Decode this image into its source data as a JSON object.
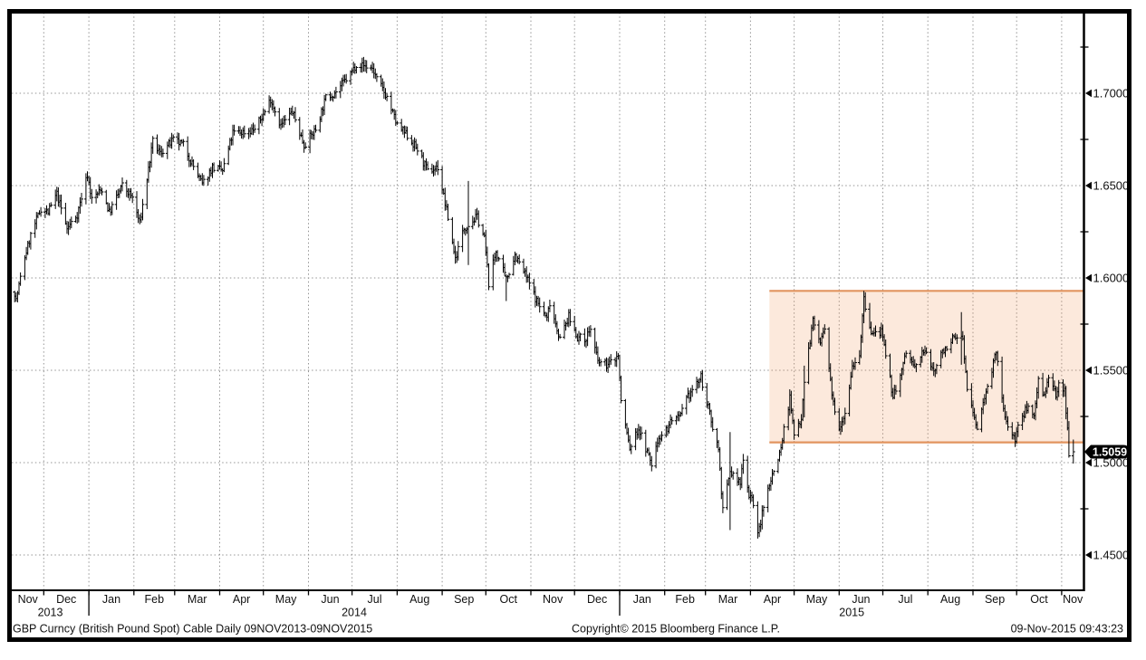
{
  "footer": {
    "left": "GBP Curncy (British Pound Spot) Cable  Daily 09NOV2013-09NOV2015",
    "center": "Copyright© 2015 Bloomberg Finance L.P.",
    "right": "09-Nov-2015 09:43:23"
  },
  "chart_data": {
    "type": "ohlc",
    "title": "GBP Curncy (British Pound Spot) Cable",
    "period": "Daily 09NOV2013-09NOV2015",
    "x_range": {
      "start": "2013-11-09",
      "end": "2015-11-09",
      "axis_end": "2015-11-16"
    },
    "y_axis": {
      "major_ticks": [
        1.45,
        1.5,
        1.55,
        1.6,
        1.65,
        1.7
      ],
      "minor_ticks": [
        1.475,
        1.525,
        1.575,
        1.625,
        1.675,
        1.725
      ],
      "decimals": 4
    },
    "x_axis": {
      "month_labels": [
        "Nov",
        "Dec",
        "Jan",
        "Feb",
        "Mar",
        "Apr",
        "May",
        "Jun",
        "Jul",
        "Aug",
        "Sep",
        "Oct",
        "Nov",
        "Dec",
        "Jan",
        "Feb",
        "Mar",
        "Apr",
        "May",
        "Jun",
        "Jul",
        "Aug",
        "Sep",
        "Oct",
        "Nov"
      ],
      "year_labels": [
        "2013",
        "2014",
        "2015"
      ]
    },
    "highlight_band": {
      "start": "2015-04-14",
      "end": "2015-11-16",
      "price_low": 1.511,
      "price_high": 1.593,
      "fill": "rgba(243,156,96,0.22)",
      "line_color": "#e2945f"
    },
    "last_price": 1.5059,
    "last_price_label": "1.5059",
    "bar_color": "#000000",
    "grid_color": "#949494",
    "noise": {
      "seed": 7,
      "close_jitter": 0.0045,
      "wick_min": 0.0006,
      "wick_rand": 0.0028
    },
    "anchors": [
      [
        "2013-11-09",
        1.601
      ],
      [
        "2013-11-12",
        1.588
      ],
      [
        "2013-11-18",
        1.6115
      ],
      [
        "2013-11-22",
        1.623
      ],
      [
        "2013-11-29",
        1.6375
      ],
      [
        "2013-12-04",
        1.6355
      ],
      [
        "2013-12-10",
        1.6455
      ],
      [
        "2013-12-17",
        1.6265
      ],
      [
        "2013-12-24",
        1.6345
      ],
      [
        "2013-12-31",
        1.656
      ],
      [
        "2014-01-03",
        1.6425
      ],
      [
        "2014-01-10",
        1.648
      ],
      [
        "2014-01-15",
        1.6355
      ],
      [
        "2014-01-24",
        1.65
      ],
      [
        "2014-01-31",
        1.6435
      ],
      [
        "2014-02-05",
        1.6295
      ],
      [
        "2014-02-14",
        1.6735
      ],
      [
        "2014-02-19",
        1.6675
      ],
      [
        "2014-02-28",
        1.6745
      ],
      [
        "2014-03-07",
        1.672
      ],
      [
        "2014-03-13",
        1.662
      ],
      [
        "2014-03-20",
        1.6505
      ],
      [
        "2014-03-27",
        1.66
      ],
      [
        "2014-04-03",
        1.658
      ],
      [
        "2014-04-10",
        1.6785
      ],
      [
        "2014-04-17",
        1.679
      ],
      [
        "2014-04-25",
        1.6805
      ],
      [
        "2014-05-01",
        1.6885
      ],
      [
        "2014-05-06",
        1.697
      ],
      [
        "2014-05-13",
        1.6825
      ],
      [
        "2014-05-21",
        1.69
      ],
      [
        "2014-05-29",
        1.672
      ],
      [
        "2014-06-06",
        1.6805
      ],
      [
        "2014-06-13",
        1.6975
      ],
      [
        "2014-06-20",
        1.701
      ],
      [
        "2014-06-30",
        1.7105
      ],
      [
        "2014-07-04",
        1.716
      ],
      [
        "2014-07-15",
        1.7135
      ],
      [
        "2014-07-18",
        1.7075
      ],
      [
        "2014-07-25",
        1.698
      ],
      [
        "2014-08-01",
        1.6825
      ],
      [
        "2014-08-08",
        1.677
      ],
      [
        "2014-08-15",
        1.6695
      ],
      [
        "2014-08-22",
        1.6575
      ],
      [
        "2014-08-29",
        1.66
      ],
      [
        "2014-09-05",
        1.6325
      ],
      [
        "2014-09-10",
        1.6105
      ],
      [
        "2014-09-16",
        1.627
      ],
      [
        "2014-09-19",
        1.629
      ],
      [
        "2014-09-25",
        1.633
      ],
      [
        "2014-09-30",
        1.6215
      ],
      [
        "2014-10-03",
        1.5975
      ],
      [
        "2014-10-08",
        1.6145
      ],
      [
        "2014-10-15",
        1.599
      ],
      [
        "2014-10-21",
        1.6125
      ],
      [
        "2014-10-29",
        1.6005
      ],
      [
        "2014-11-05",
        1.5875
      ],
      [
        "2014-11-12",
        1.578
      ],
      [
        "2014-11-14",
        1.587
      ],
      [
        "2014-11-21",
        1.567
      ],
      [
        "2014-11-27",
        1.579
      ],
      [
        "2014-12-03",
        1.568
      ],
      [
        "2014-12-08",
        1.5665
      ],
      [
        "2014-12-12",
        1.5725
      ],
      [
        "2014-12-17",
        1.5545
      ],
      [
        "2014-12-24",
        1.553
      ],
      [
        "2014-12-31",
        1.558
      ],
      [
        "2015-01-02",
        1.533
      ],
      [
        "2015-01-08",
        1.5075
      ],
      [
        "2015-01-14",
        1.5185
      ],
      [
        "2015-01-23",
        1.499
      ],
      [
        "2015-01-28",
        1.514
      ],
      [
        "2015-02-03",
        1.5185
      ],
      [
        "2015-02-06",
        1.524
      ],
      [
        "2015-02-11",
        1.5235
      ],
      [
        "2015-02-17",
        1.5355
      ],
      [
        "2015-02-20",
        1.5395
      ],
      [
        "2015-02-26",
        1.546
      ],
      [
        "2015-03-04",
        1.526
      ],
      [
        "2015-03-10",
        1.5075
      ],
      [
        "2015-03-13",
        1.474
      ],
      [
        "2015-03-18",
        1.495
      ],
      [
        "2015-03-25",
        1.4885
      ],
      [
        "2015-03-27",
        1.5035
      ],
      [
        "2015-03-31",
        1.482
      ],
      [
        "2015-04-02",
        1.4825
      ],
      [
        "2015-04-06",
        1.4605
      ],
      [
        "2015-04-09",
        1.472
      ],
      [
        "2015-04-14",
        1.489
      ],
      [
        "2015-04-17",
        1.4955
      ],
      [
        "2015-04-22",
        1.508
      ],
      [
        "2015-04-24",
        1.518
      ],
      [
        "2015-04-28",
        1.535
      ],
      [
        "2015-05-01",
        1.5145
      ],
      [
        "2015-05-06",
        1.525
      ],
      [
        "2015-05-08",
        1.545
      ],
      [
        "2015-05-14",
        1.577
      ],
      [
        "2015-05-19",
        1.565
      ],
      [
        "2015-05-22",
        1.572
      ],
      [
        "2015-05-27",
        1.536
      ],
      [
        "2015-06-01",
        1.5195
      ],
      [
        "2015-06-05",
        1.5275
      ],
      [
        "2015-06-10",
        1.5525
      ],
      [
        "2015-06-15",
        1.559
      ],
      [
        "2015-06-18",
        1.588
      ],
      [
        "2015-06-23",
        1.5695
      ],
      [
        "2015-06-30",
        1.571
      ],
      [
        "2015-07-03",
        1.557
      ],
      [
        "2015-07-08",
        1.536
      ],
      [
        "2015-07-14",
        1.549
      ],
      [
        "2015-07-17",
        1.5605
      ],
      [
        "2015-07-23",
        1.551
      ],
      [
        "2015-07-29",
        1.561
      ],
      [
        "2015-08-05",
        1.5495
      ],
      [
        "2015-08-12",
        1.5615
      ],
      [
        "2015-08-18",
        1.5665
      ],
      [
        "2015-08-25",
        1.568
      ],
      [
        "2015-08-28",
        1.539
      ],
      [
        "2015-09-04",
        1.518
      ],
      [
        "2015-09-11",
        1.543
      ],
      [
        "2015-09-17",
        1.559
      ],
      [
        "2015-09-23",
        1.5235
      ],
      [
        "2015-09-30",
        1.513
      ],
      [
        "2015-10-02",
        1.519
      ],
      [
        "2015-10-09",
        1.532
      ],
      [
        "2015-10-13",
        1.525
      ],
      [
        "2015-10-16",
        1.546
      ],
      [
        "2015-10-20",
        1.5365
      ],
      [
        "2015-10-23",
        1.545
      ],
      [
        "2015-10-28",
        1.536
      ],
      [
        "2015-10-30",
        1.5425
      ],
      [
        "2015-11-03",
        1.5395
      ],
      [
        "2015-11-05",
        1.5185
      ],
      [
        "2015-11-06",
        1.5055
      ],
      [
        "2015-11-09",
        1.5059
      ]
    ],
    "spikes": {
      "2014-09-19": [
        1.607,
        1.6525
      ],
      "2014-10-15": [
        1.5875,
        1.602
      ],
      "2015-03-18": [
        1.4635,
        1.5165
      ],
      "2015-05-08": [
        1.5245,
        1.5525
      ],
      "2015-06-18": [
        1.5755,
        1.593
      ],
      "2015-08-24": [
        1.553,
        1.5815
      ],
      "2015-11-06": [
        1.5027,
        1.5225
      ],
      "2015-11-09": [
        1.4995,
        1.5125
      ]
    }
  }
}
